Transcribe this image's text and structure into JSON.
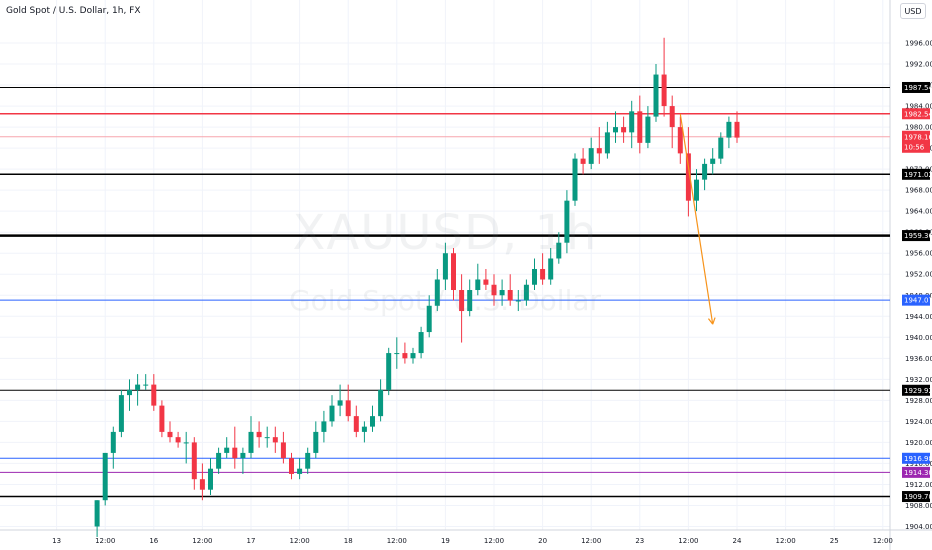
{
  "header": {
    "symbol_title": "Gold Spot / U.S. Dollar, 1h, FX"
  },
  "currency_button": "USD",
  "watermark": {
    "ticker": "XAUUSD, 1h",
    "name": "Gold Spot / U.S. Dollar"
  },
  "colors": {
    "bull": "#089981",
    "bear": "#f23645",
    "black": "#000000",
    "red_line": "#f23645",
    "blue": "#2962ff",
    "purple": "#9c27b0",
    "arrow": "#f7931a",
    "price_tag": "#f23645"
  },
  "chart_data": {
    "type": "candlestick",
    "title": "Gold Spot / U.S. Dollar, 1h, FX",
    "ylim": [
      1902,
      2000
    ],
    "y_ticks": [
      1904,
      1908,
      1912,
      1916,
      1920,
      1924,
      1928,
      1932,
      1936,
      1940,
      1944,
      1948,
      1952,
      1956,
      1960,
      1964,
      1968,
      1972,
      1976,
      1980,
      1984,
      1988,
      1992,
      1996
    ],
    "x_ticks": [
      {
        "label": "13",
        "t": 6
      },
      {
        "label": "12:00",
        "t": 12
      },
      {
        "label": "16",
        "t": 18
      },
      {
        "label": "12:00",
        "t": 24
      },
      {
        "label": "17",
        "t": 30
      },
      {
        "label": "12:00",
        "t": 36
      },
      {
        "label": "18",
        "t": 42
      },
      {
        "label": "12:00",
        "t": 48
      },
      {
        "label": "19",
        "t": 54
      },
      {
        "label": "12:00",
        "t": 60
      },
      {
        "label": "20",
        "t": 66
      },
      {
        "label": "12:00",
        "t": 72
      },
      {
        "label": "23",
        "t": 78
      },
      {
        "label": "12:00",
        "t": 84
      },
      {
        "label": "24",
        "t": 90
      },
      {
        "label": "12:00",
        "t": 96
      },
      {
        "label": "25",
        "t": 102
      },
      {
        "label": "12:00",
        "t": 108
      }
    ],
    "levels": [
      {
        "value": 1987.54,
        "label": "1987.54",
        "color": "#000000",
        "width": 1
      },
      {
        "value": 1982.54,
        "label": "1982.54",
        "color": "#f23645",
        "width": 1.5
      },
      {
        "value": 1971.02,
        "label": "1971.02",
        "color": "#000000",
        "width": 1.5
      },
      {
        "value": 1959.36,
        "label": "1959.36",
        "color": "#000000",
        "width": 2.5
      },
      {
        "value": 1947.07,
        "label": "1947.07",
        "color": "#2962ff",
        "width": 1
      },
      {
        "value": 1929.92,
        "label": "1929.92",
        "color": "#000000",
        "width": 1
      },
      {
        "value": 1916.98,
        "label": "1916.98",
        "color": "#2962ff",
        "width": 1
      },
      {
        "value": 1914.3,
        "label": "1914.30",
        "color": "#9c27b0",
        "width": 1
      },
      {
        "value": 1909.7,
        "label": "1909.70",
        "color": "#000000",
        "width": 1.5
      }
    ],
    "current_price": {
      "value": 1978.16,
      "label": "1978.16",
      "countdown": "10:56"
    },
    "projection_arrow": {
      "from": {
        "t": 83,
        "price": 1982.5
      },
      "to": {
        "t": 87,
        "price": 1942.5
      }
    },
    "candles": [
      {
        "t": 11,
        "o": 1904,
        "h": 1909,
        "l": 1902,
        "c": 1909
      },
      {
        "t": 12,
        "o": 1909,
        "h": 1918,
        "l": 1908,
        "c": 1918
      },
      {
        "t": 13,
        "o": 1918,
        "h": 1923,
        "l": 1915,
        "c": 1922
      },
      {
        "t": 14,
        "o": 1922,
        "h": 1930,
        "l": 1921,
        "c": 1929
      },
      {
        "t": 15,
        "o": 1929,
        "h": 1932,
        "l": 1926,
        "c": 1930
      },
      {
        "t": 16,
        "o": 1930,
        "h": 1933,
        "l": 1927,
        "c": 1931
      },
      {
        "t": 17,
        "o": 1931,
        "h": 1933,
        "l": 1930,
        "c": 1931
      },
      {
        "t": 18,
        "o": 1931,
        "h": 1933,
        "l": 1926,
        "c": 1927
      },
      {
        "t": 19,
        "o": 1927,
        "h": 1928,
        "l": 1921,
        "c": 1922
      },
      {
        "t": 20,
        "o": 1922,
        "h": 1924,
        "l": 1920,
        "c": 1921
      },
      {
        "t": 21,
        "o": 1921,
        "h": 1922,
        "l": 1919,
        "c": 1920
      },
      {
        "t": 22,
        "o": 1920,
        "h": 1922,
        "l": 1916,
        "c": 1920
      },
      {
        "t": 23,
        "o": 1920,
        "h": 1921,
        "l": 1911,
        "c": 1913
      },
      {
        "t": 24,
        "o": 1913,
        "h": 1916,
        "l": 1909,
        "c": 1911
      },
      {
        "t": 25,
        "o": 1911,
        "h": 1917,
        "l": 1910,
        "c": 1915
      },
      {
        "t": 26,
        "o": 1915,
        "h": 1919,
        "l": 1914,
        "c": 1918
      },
      {
        "t": 27,
        "o": 1918,
        "h": 1921,
        "l": 1917,
        "c": 1919
      },
      {
        "t": 28,
        "o": 1919,
        "h": 1923,
        "l": 1915,
        "c": 1917
      },
      {
        "t": 29,
        "o": 1917,
        "h": 1919,
        "l": 1914,
        "c": 1918
      },
      {
        "t": 30,
        "o": 1918,
        "h": 1925,
        "l": 1917,
        "c": 1922
      },
      {
        "t": 31,
        "o": 1922,
        "h": 1924,
        "l": 1919,
        "c": 1921
      },
      {
        "t": 32,
        "o": 1921,
        "h": 1923,
        "l": 1919,
        "c": 1921
      },
      {
        "t": 33,
        "o": 1921,
        "h": 1923,
        "l": 1918,
        "c": 1920
      },
      {
        "t": 34,
        "o": 1920,
        "h": 1922,
        "l": 1916,
        "c": 1917
      },
      {
        "t": 35,
        "o": 1917,
        "h": 1918,
        "l": 1913,
        "c": 1914
      },
      {
        "t": 36,
        "o": 1914,
        "h": 1917,
        "l": 1913,
        "c": 1915
      },
      {
        "t": 37,
        "o": 1915,
        "h": 1919,
        "l": 1914,
        "c": 1918
      },
      {
        "t": 38,
        "o": 1918,
        "h": 1924,
        "l": 1917,
        "c": 1922
      },
      {
        "t": 39,
        "o": 1922,
        "h": 1926,
        "l": 1920,
        "c": 1924
      },
      {
        "t": 40,
        "o": 1924,
        "h": 1929,
        "l": 1923,
        "c": 1927
      },
      {
        "t": 41,
        "o": 1927,
        "h": 1931,
        "l": 1925,
        "c": 1928
      },
      {
        "t": 42,
        "o": 1928,
        "h": 1931,
        "l": 1924,
        "c": 1925
      },
      {
        "t": 43,
        "o": 1925,
        "h": 1927,
        "l": 1921,
        "c": 1922
      },
      {
        "t": 44,
        "o": 1922,
        "h": 1924,
        "l": 1920,
        "c": 1923
      },
      {
        "t": 45,
        "o": 1923,
        "h": 1927,
        "l": 1922,
        "c": 1925
      },
      {
        "t": 46,
        "o": 1925,
        "h": 1932,
        "l": 1924,
        "c": 1930
      },
      {
        "t": 47,
        "o": 1930,
        "h": 1938,
        "l": 1929,
        "c": 1937
      },
      {
        "t": 48,
        "o": 1937,
        "h": 1940,
        "l": 1934,
        "c": 1937
      },
      {
        "t": 49,
        "o": 1937,
        "h": 1939,
        "l": 1935,
        "c": 1936
      },
      {
        "t": 50,
        "o": 1936,
        "h": 1938,
        "l": 1935,
        "c": 1937
      },
      {
        "t": 51,
        "o": 1937,
        "h": 1942,
        "l": 1936,
        "c": 1941
      },
      {
        "t": 52,
        "o": 1941,
        "h": 1948,
        "l": 1940,
        "c": 1946
      },
      {
        "t": 53,
        "o": 1946,
        "h": 1953,
        "l": 1945,
        "c": 1951
      },
      {
        "t": 54,
        "o": 1951,
        "h": 1958,
        "l": 1949,
        "c": 1956
      },
      {
        "t": 55,
        "o": 1956,
        "h": 1957,
        "l": 1947,
        "c": 1949
      },
      {
        "t": 56,
        "o": 1949,
        "h": 1952,
        "l": 1939,
        "c": 1945
      },
      {
        "t": 57,
        "o": 1945,
        "h": 1951,
        "l": 1944,
        "c": 1949
      },
      {
        "t": 58,
        "o": 1949,
        "h": 1954,
        "l": 1948,
        "c": 1951
      },
      {
        "t": 59,
        "o": 1951,
        "h": 1953,
        "l": 1949,
        "c": 1950
      },
      {
        "t": 60,
        "o": 1950,
        "h": 1952,
        "l": 1946,
        "c": 1948
      },
      {
        "t": 61,
        "o": 1948,
        "h": 1951,
        "l": 1946,
        "c": 1949
      },
      {
        "t": 62,
        "o": 1949,
        "h": 1952,
        "l": 1946,
        "c": 1947
      },
      {
        "t": 63,
        "o": 1947,
        "h": 1949,
        "l": 1945,
        "c": 1947
      },
      {
        "t": 64,
        "o": 1947,
        "h": 1951,
        "l": 1946,
        "c": 1950
      },
      {
        "t": 65,
        "o": 1950,
        "h": 1955,
        "l": 1949,
        "c": 1953
      },
      {
        "t": 66,
        "o": 1953,
        "h": 1956,
        "l": 1950,
        "c": 1951
      },
      {
        "t": 67,
        "o": 1951,
        "h": 1957,
        "l": 1950,
        "c": 1955
      },
      {
        "t": 68,
        "o": 1955,
        "h": 1960,
        "l": 1954,
        "c": 1958
      },
      {
        "t": 69,
        "o": 1958,
        "h": 1968,
        "l": 1956,
        "c": 1966
      },
      {
        "t": 70,
        "o": 1966,
        "h": 1975,
        "l": 1965,
        "c": 1974
      },
      {
        "t": 71,
        "o": 1974,
        "h": 1976,
        "l": 1971,
        "c": 1973
      },
      {
        "t": 72,
        "o": 1973,
        "h": 1978,
        "l": 1972,
        "c": 1976
      },
      {
        "t": 73,
        "o": 1976,
        "h": 1980,
        "l": 1973,
        "c": 1975
      },
      {
        "t": 74,
        "o": 1975,
        "h": 1981,
        "l": 1974,
        "c": 1979
      },
      {
        "t": 75,
        "o": 1979,
        "h": 1983,
        "l": 1977,
        "c": 1980
      },
      {
        "t": 76,
        "o": 1980,
        "h": 1982,
        "l": 1977,
        "c": 1979
      },
      {
        "t": 77,
        "o": 1979,
        "h": 1985,
        "l": 1976,
        "c": 1983
      },
      {
        "t": 78,
        "o": 1983,
        "h": 1986,
        "l": 1975,
        "c": 1977
      },
      {
        "t": 79,
        "o": 1977,
        "h": 1984,
        "l": 1976,
        "c": 1982
      },
      {
        "t": 80,
        "o": 1982,
        "h": 1992,
        "l": 1981,
        "c": 1990
      },
      {
        "t": 81,
        "o": 1990,
        "h": 1997,
        "l": 1982,
        "c": 1984
      },
      {
        "t": 82,
        "o": 1984,
        "h": 1986,
        "l": 1976,
        "c": 1980
      },
      {
        "t": 83,
        "o": 1980,
        "h": 1982,
        "l": 1973,
        "c": 1975
      },
      {
        "t": 84,
        "o": 1975,
        "h": 1980,
        "l": 1963,
        "c": 1966
      },
      {
        "t": 85,
        "o": 1966,
        "h": 1972,
        "l": 1964,
        "c": 1970
      },
      {
        "t": 86,
        "o": 1970,
        "h": 1974,
        "l": 1968,
        "c": 1973
      },
      {
        "t": 87,
        "o": 1973,
        "h": 1976,
        "l": 1971,
        "c": 1974
      },
      {
        "t": 88,
        "o": 1974,
        "h": 1979,
        "l": 1973,
        "c": 1978
      },
      {
        "t": 89,
        "o": 1978,
        "h": 1982,
        "l": 1976,
        "c": 1981
      },
      {
        "t": 90,
        "o": 1981,
        "h": 1983,
        "l": 1977,
        "c": 1978
      }
    ]
  }
}
